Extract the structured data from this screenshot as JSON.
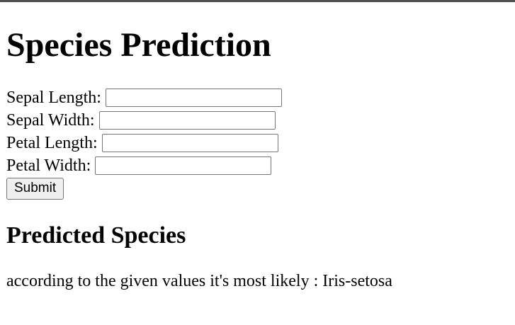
{
  "page": {
    "title": "Species Prediction"
  },
  "form": {
    "fields": [
      {
        "label": "Sepal Length:",
        "value": ""
      },
      {
        "label": "Sepal Width:",
        "value": ""
      },
      {
        "label": "Petal Length:",
        "value": ""
      },
      {
        "label": "Petal Width:",
        "value": ""
      }
    ],
    "submit_label": "Submit"
  },
  "result": {
    "heading": "Predicted Species",
    "text": "according to the given values it's most likely : Iris-setosa"
  }
}
